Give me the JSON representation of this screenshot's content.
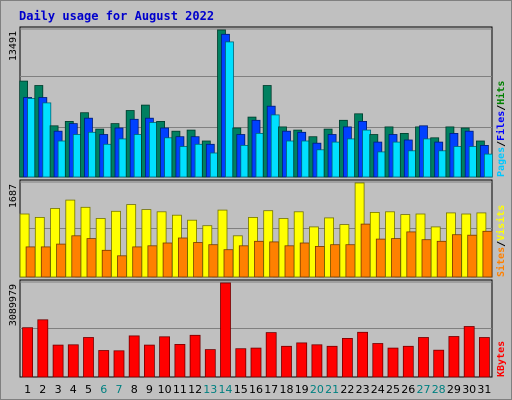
{
  "title": "Daily usage for August 2022",
  "chart_data": [
    {
      "type": "bar",
      "name": "hits-files-pages",
      "ymax_label": "13491",
      "ylim": [
        0,
        13491
      ],
      "legend": [
        {
          "text": "Pages",
          "color": "#00c8ff"
        },
        {
          "text": "/",
          "color": "#000000"
        },
        {
          "text": "Files",
          "color": "#0000ff"
        },
        {
          "text": "/",
          "color": "#000000"
        },
        {
          "text": "Hits",
          "color": "#008000"
        }
      ],
      "categories": [
        "1",
        "2",
        "3",
        "4",
        "5",
        "6",
        "7",
        "8",
        "9",
        "10",
        "11",
        "12",
        "13",
        "14",
        "15",
        "16",
        "17",
        "18",
        "19",
        "20",
        "21",
        "22",
        "23",
        "24",
        "25",
        "26",
        "27",
        "28",
        "29",
        "30",
        "31"
      ],
      "series": [
        {
          "name": "Hits",
          "color": "#008060",
          "values": [
            8800,
            8400,
            4700,
            5100,
            5900,
            4400,
            4900,
            6100,
            6600,
            5100,
            4200,
            4300,
            3300,
            13491,
            4500,
            5500,
            8400,
            4600,
            4300,
            3700,
            4400,
            5200,
            5800,
            3900,
            4600,
            4000,
            4600,
            3600,
            4600,
            4500,
            3300
          ]
        },
        {
          "name": "Files",
          "color": "#0040ff",
          "values": [
            7300,
            7300,
            4200,
            4900,
            5400,
            3900,
            4500,
            5300,
            5400,
            4500,
            3700,
            3700,
            3000,
            13100,
            3900,
            5200,
            6500,
            4200,
            4100,
            3100,
            3900,
            4600,
            5100,
            3200,
            3900,
            3400,
            4700,
            3200,
            4000,
            4200,
            2900
          ]
        },
        {
          "name": "Pages",
          "color": "#00e0ff",
          "values": [
            7200,
            6800,
            3300,
            3900,
            4100,
            3000,
            3500,
            3900,
            5000,
            3600,
            2800,
            3000,
            2200,
            12400,
            2900,
            4000,
            5700,
            3300,
            3300,
            2500,
            3200,
            3500,
            4300,
            2300,
            3200,
            2400,
            3500,
            2400,
            2800,
            2800,
            2100
          ]
        }
      ]
    },
    {
      "type": "bar",
      "name": "visits-sites",
      "ymax_label": "1687",
      "ylim": [
        0,
        1687
      ],
      "legend": [
        {
          "text": "Sites",
          "color": "#ff8000"
        },
        {
          "text": "/",
          "color": "#000000"
        },
        {
          "text": "Visits",
          "color": "#ffff00"
        }
      ],
      "categories": [
        "1",
        "2",
        "3",
        "4",
        "5",
        "6",
        "7",
        "8",
        "9",
        "10",
        "11",
        "12",
        "13",
        "14",
        "15",
        "16",
        "17",
        "18",
        "19",
        "20",
        "21",
        "22",
        "23",
        "24",
        "25",
        "26",
        "27",
        "28",
        "29",
        "30",
        "31"
      ],
      "series": [
        {
          "name": "Visits",
          "color": "#ffff00",
          "values": [
            1130,
            1070,
            1230,
            1380,
            1250,
            1050,
            1180,
            1300,
            1210,
            1170,
            1110,
            1020,
            920,
            1200,
            740,
            1070,
            1190,
            1050,
            1170,
            900,
            1060,
            940,
            1687,
            1160,
            1170,
            1120,
            1130,
            900,
            1150,
            1130,
            1150
          ]
        },
        {
          "name": "Sites",
          "color": "#ff8000",
          "values": [
            540,
            540,
            590,
            740,
            690,
            480,
            380,
            540,
            560,
            610,
            700,
            620,
            580,
            490,
            560,
            640,
            630,
            560,
            610,
            550,
            580,
            580,
            950,
            680,
            690,
            810,
            670,
            640,
            760,
            750,
            820
          ]
        }
      ]
    },
    {
      "type": "bar",
      "name": "kbytes",
      "ymax_label": "3089979",
      "ylim": [
        0,
        3089979
      ],
      "legend": [
        {
          "text": "KBytes",
          "color": "#ff0000"
        }
      ],
      "categories": [
        "1",
        "2",
        "3",
        "4",
        "5",
        "6",
        "7",
        "8",
        "9",
        "10",
        "11",
        "12",
        "13",
        "14",
        "15",
        "16",
        "17",
        "18",
        "19",
        "20",
        "21",
        "22",
        "23",
        "24",
        "25",
        "26",
        "27",
        "28",
        "29",
        "30",
        "31"
      ],
      "series": [
        {
          "name": "KBytes",
          "color": "#ff0000",
          "values": [
            1620000,
            1880000,
            1050000,
            1060000,
            1300000,
            870000,
            860000,
            1350000,
            1050000,
            1320000,
            1070000,
            1370000,
            900000,
            3089979,
            930000,
            950000,
            1460000,
            1010000,
            1120000,
            1060000,
            1010000,
            1270000,
            1470000,
            1100000,
            950000,
            1010000,
            1300000,
            880000,
            1330000,
            1660000,
            1300000
          ]
        }
      ]
    }
  ],
  "weekend_days": [
    "6",
    "7",
    "13",
    "14",
    "20",
    "21",
    "27",
    "28"
  ]
}
